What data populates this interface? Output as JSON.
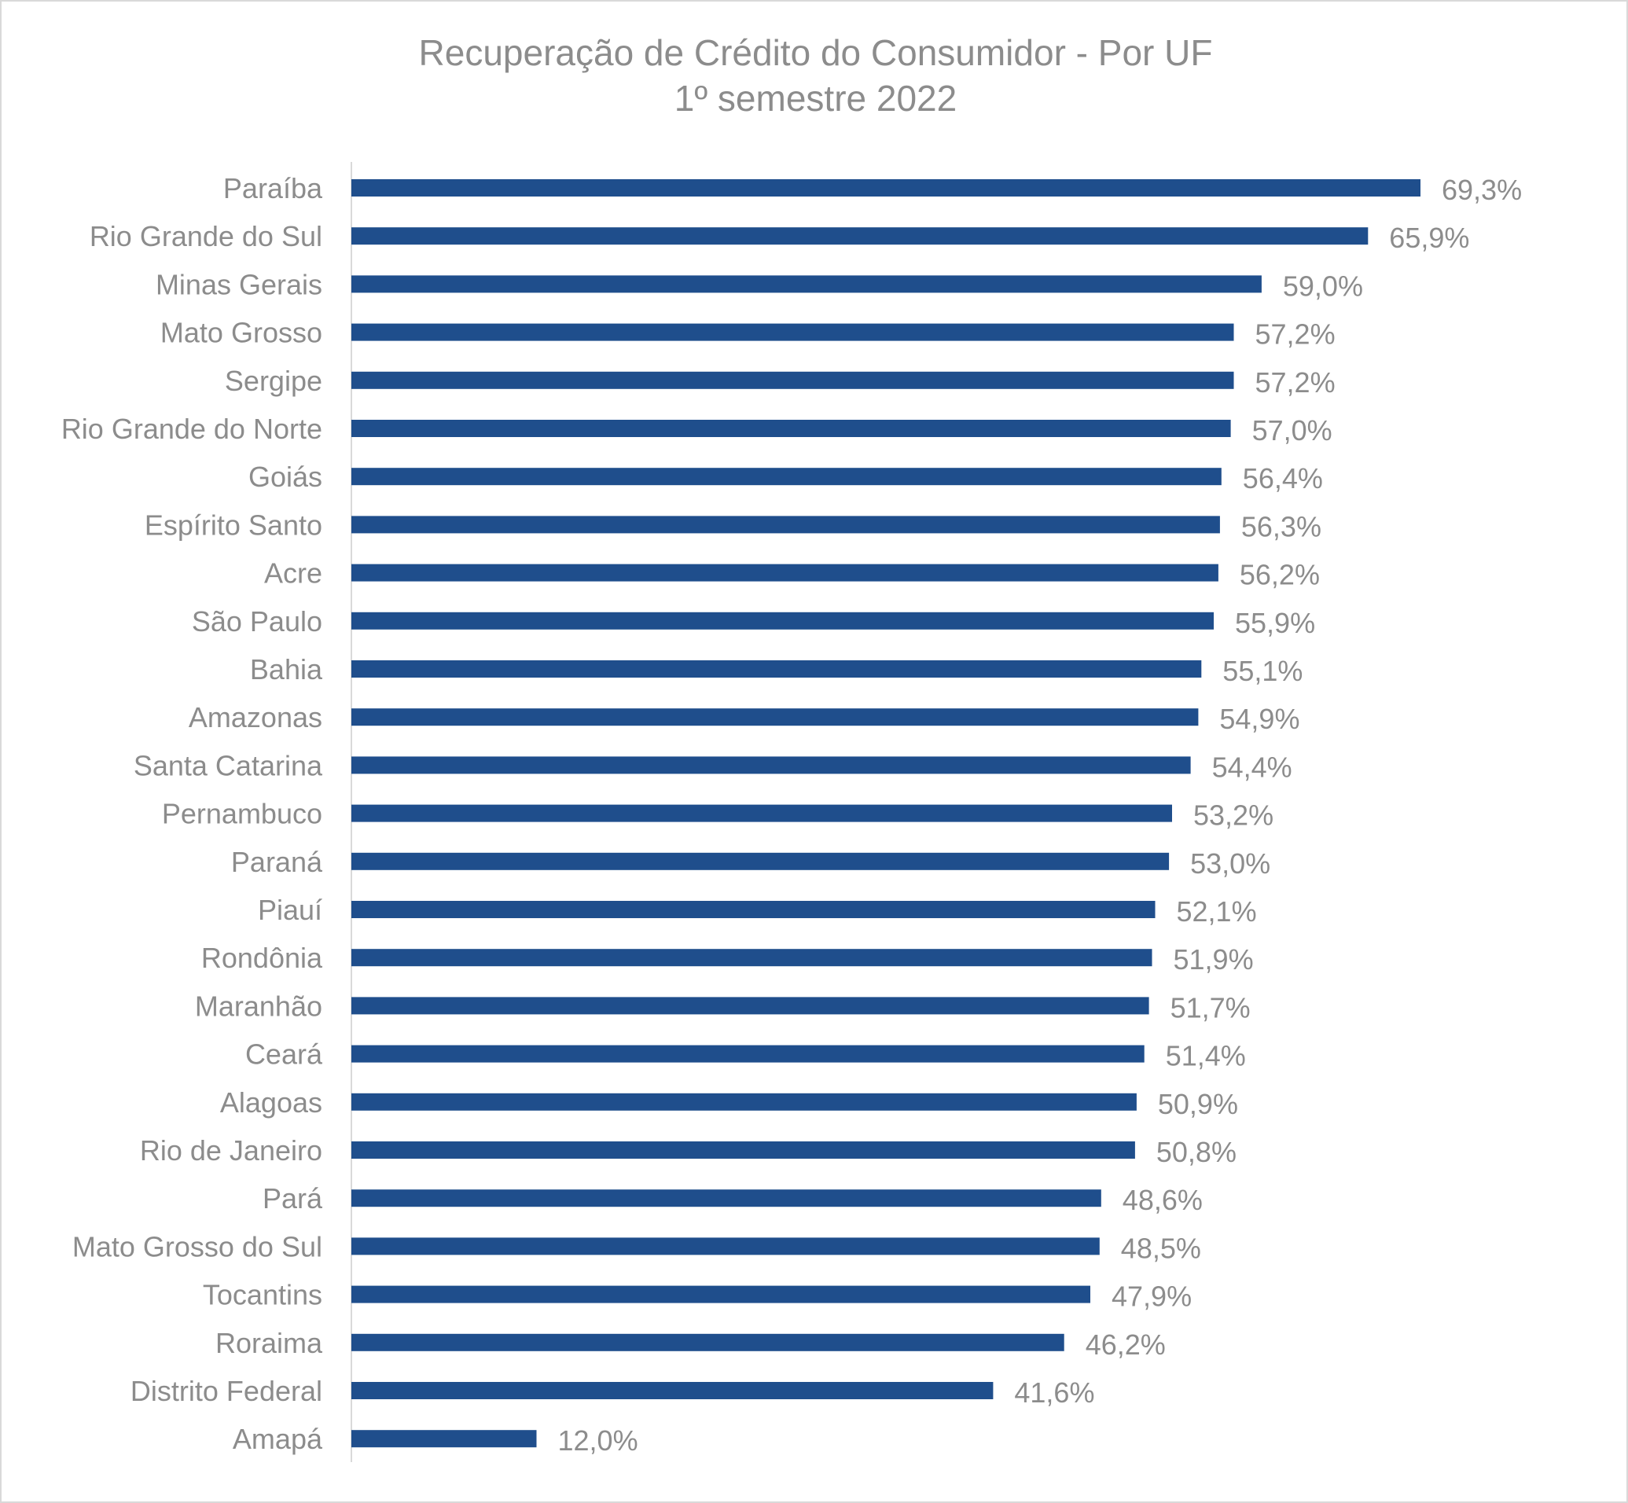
{
  "chart_data": {
    "type": "bar",
    "orientation": "horizontal",
    "title": "Recuperação de Crédito do Consumidor -  Por UF",
    "subtitle": "1º semestre 2022",
    "xlabel": "",
    "ylabel": "",
    "grid": false,
    "legend": "none",
    "xlim": [
      0,
      69.3
    ],
    "bar_color": "#1f4e8c",
    "categories": [
      "Paraíba",
      "Rio Grande do Sul",
      "Minas Gerais",
      "Mato Grosso",
      "Sergipe",
      "Rio Grande do Norte",
      "Goiás",
      "Espírito Santo",
      "Acre",
      "São Paulo",
      "Bahia",
      "Amazonas",
      "Santa Catarina",
      "Pernambuco",
      "Paraná",
      "Piauí",
      "Rondônia",
      "Maranhão",
      "Ceará",
      "Alagoas",
      "Rio de Janeiro",
      "Pará",
      "Mato Grosso do Sul",
      "Tocantins",
      "Roraima",
      "Distrito Federal",
      "Amapá"
    ],
    "values": [
      69.3,
      65.9,
      59.0,
      57.2,
      57.2,
      57.0,
      56.4,
      56.3,
      56.2,
      55.9,
      55.1,
      54.9,
      54.4,
      53.2,
      53.0,
      52.1,
      51.9,
      51.7,
      51.4,
      50.9,
      50.8,
      48.6,
      48.5,
      47.9,
      46.2,
      41.6,
      12.0
    ],
    "data_labels": [
      "69,3%",
      "65,9%",
      "59,0%",
      "57,2%",
      "57,2%",
      "57,0%",
      "56,4%",
      "56,3%",
      "56,2%",
      "55,9%",
      "55,1%",
      "54,9%",
      "54,4%",
      "53,2%",
      "53,0%",
      "52,1%",
      "51,9%",
      "51,7%",
      "51,4%",
      "50,9%",
      "50,8%",
      "48,6%",
      "48,5%",
      "47,9%",
      "46,2%",
      "41,6%",
      "12,0%"
    ]
  }
}
